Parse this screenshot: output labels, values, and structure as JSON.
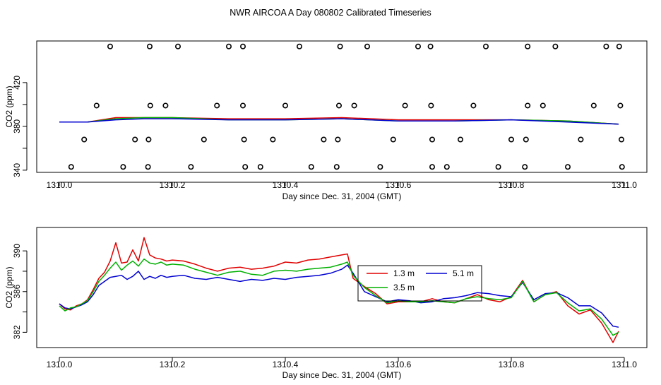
{
  "title": "NWR AIRCOA A  Day 080802  Calibrated Timeseries",
  "chart_data": [
    {
      "type": "line",
      "name": "top-panel",
      "xlabel": "Day since Dec. 31, 2004 (GMT)",
      "ylabel": "CO2 (ppm)",
      "xlim": [
        1310.0,
        1311.0
      ],
      "ylim": [
        338,
        458
      ],
      "x_ticks": [
        1310.0,
        1310.2,
        1310.4,
        1310.6,
        1310.8,
        1311.0
      ],
      "x_tick_labels": [
        "1310.0",
        "1310.2",
        "1310.4",
        "1310.6",
        "1310.8",
        "1311.0"
      ],
      "y_ticks": [
        340,
        360,
        380,
        400,
        420
      ],
      "y_tick_labels": [
        "340",
        "",
        "380",
        "",
        "420"
      ],
      "series": [
        {
          "name": "1.3 m",
          "color": "#e00000",
          "x": [
            1310.0,
            1310.05,
            1310.1,
            1310.15,
            1310.2,
            1310.3,
            1310.4,
            1310.5,
            1310.6,
            1310.7,
            1310.8,
            1310.9,
            1310.99
          ],
          "y": [
            384,
            384,
            388,
            388,
            388,
            387,
            387,
            388,
            386,
            386,
            386,
            385,
            382
          ]
        },
        {
          "name": "3.5 m",
          "color": "#00b000",
          "x": [
            1310.0,
            1310.05,
            1310.1,
            1310.15,
            1310.2,
            1310.3,
            1310.4,
            1310.5,
            1310.6,
            1310.7,
            1310.8,
            1310.9,
            1310.99
          ],
          "y": [
            384,
            384,
            387,
            388,
            388,
            386,
            386,
            387,
            385,
            385,
            386,
            385,
            382
          ]
        },
        {
          "name": "5.1 m",
          "color": "#0000d0",
          "x": [
            1310.0,
            1310.05,
            1310.1,
            1310.15,
            1310.2,
            1310.3,
            1310.4,
            1310.5,
            1310.6,
            1310.7,
            1310.8,
            1310.9,
            1310.99
          ],
          "y": [
            384,
            384,
            386,
            387,
            387,
            386,
            386,
            387,
            385,
            385,
            386,
            384,
            382
          ]
        }
      ],
      "scatter_points": {
        "x": [
          1310.09,
          1310.16,
          1310.21,
          1310.3,
          1310.325,
          1310.425,
          1310.497,
          1310.545,
          1310.635,
          1310.657,
          1310.755,
          1310.829,
          1310.878,
          1310.968,
          1310.991,
          1310.066,
          1310.161,
          1310.188,
          1310.279,
          1310.325,
          1310.4,
          1310.495,
          1310.522,
          1310.612,
          1310.658,
          1310.733,
          1310.829,
          1310.856,
          1310.946,
          1310.993,
          1310.044,
          1310.134,
          1310.158,
          1310.256,
          1310.327,
          1310.378,
          1310.468,
          1310.493,
          1310.591,
          1310.66,
          1310.71,
          1310.8,
          1310.826,
          1310.923,
          1310.995,
          1310.021,
          1310.113,
          1310.157,
          1310.233,
          1310.329,
          1310.356,
          1310.446,
          1310.491,
          1310.568,
          1310.66,
          1310.686,
          1310.777,
          1310.824,
          1310.9,
          1310.996
        ],
        "y": [
          453,
          453,
          453,
          453,
          453,
          453,
          453,
          453,
          453,
          453,
          453,
          453,
          453,
          453,
          453,
          399,
          399,
          399,
          399,
          399,
          399,
          399,
          399,
          399,
          399,
          399,
          399,
          399,
          399,
          399,
          368,
          368,
          368,
          368,
          368,
          368,
          368,
          368,
          368,
          368,
          368,
          368,
          368,
          368,
          368,
          343,
          343,
          343,
          343,
          343,
          343,
          343,
          343,
          343,
          343,
          343,
          343,
          343,
          343,
          343
        ]
      }
    },
    {
      "type": "line",
      "name": "bottom-panel",
      "xlabel": "Day since Dec. 31, 2004 (GMT)",
      "ylabel": "CO2 (ppm)",
      "xlim": [
        1310.0,
        1311.0
      ],
      "ylim": [
        380.5,
        392.3
      ],
      "x_ticks": [
        1310.0,
        1310.2,
        1310.4,
        1310.6,
        1310.8,
        1311.0
      ],
      "x_tick_labels": [
        "1310.0",
        "1310.2",
        "1310.4",
        "1310.6",
        "1310.8",
        "1311.0"
      ],
      "y_ticks": [
        382,
        384,
        386,
        388,
        390
      ],
      "y_tick_labels": [
        "382",
        "",
        "386",
        "",
        "390"
      ],
      "legend": {
        "position": "center-right",
        "entries": [
          "1.3 m",
          "5.1 m",
          "3.5 m"
        ]
      },
      "series": [
        {
          "name": "1.3 m",
          "color": "#e00000",
          "x": [
            1310.0,
            1310.01,
            1310.02,
            1310.03,
            1310.04,
            1310.05,
            1310.06,
            1310.07,
            1310.08,
            1310.09,
            1310.1,
            1310.11,
            1310.12,
            1310.13,
            1310.14,
            1310.15,
            1310.16,
            1310.17,
            1310.18,
            1310.19,
            1310.2,
            1310.22,
            1310.24,
            1310.26,
            1310.28,
            1310.3,
            1310.32,
            1310.34,
            1310.36,
            1310.38,
            1310.4,
            1310.42,
            1310.44,
            1310.46,
            1310.48,
            1310.5,
            1310.51,
            1310.52,
            1310.54,
            1310.56,
            1310.58,
            1310.6,
            1310.62,
            1310.64,
            1310.66,
            1310.68,
            1310.7,
            1310.72,
            1310.74,
            1310.76,
            1310.78,
            1310.8,
            1310.82,
            1310.84,
            1310.86,
            1310.88,
            1310.9,
            1310.92,
            1310.94,
            1310.96,
            1310.98,
            1310.99
          ],
          "y": [
            384.8,
            384.3,
            384.2,
            384.6,
            384.8,
            385.2,
            386.2,
            387.3,
            387.9,
            389.0,
            390.8,
            388.8,
            388.9,
            390.1,
            389.0,
            391.3,
            389.6,
            389.3,
            389.2,
            389.0,
            389.1,
            389.0,
            388.7,
            388.3,
            388.0,
            388.3,
            388.4,
            388.2,
            388.3,
            388.5,
            388.9,
            388.8,
            389.1,
            389.2,
            389.4,
            389.6,
            389.7,
            387.3,
            386.5,
            385.8,
            384.8,
            385.0,
            385.0,
            385.0,
            385.3,
            385.0,
            384.9,
            385.3,
            385.7,
            385.2,
            385.0,
            385.5,
            387.1,
            385.0,
            385.7,
            386.0,
            384.6,
            383.8,
            384.2,
            382.9,
            381.0,
            382.1
          ]
        },
        {
          "name": "5.1 m",
          "color": "#0000d0",
          "x": [
            1310.0,
            1310.01,
            1310.02,
            1310.03,
            1310.04,
            1310.05,
            1310.06,
            1310.07,
            1310.08,
            1310.09,
            1310.1,
            1310.11,
            1310.12,
            1310.13,
            1310.14,
            1310.15,
            1310.16,
            1310.17,
            1310.18,
            1310.19,
            1310.2,
            1310.22,
            1310.24,
            1310.26,
            1310.28,
            1310.3,
            1310.32,
            1310.34,
            1310.36,
            1310.38,
            1310.4,
            1310.42,
            1310.44,
            1310.46,
            1310.48,
            1310.5,
            1310.51,
            1310.52,
            1310.54,
            1310.56,
            1310.58,
            1310.6,
            1310.62,
            1310.64,
            1310.66,
            1310.68,
            1310.7,
            1310.72,
            1310.74,
            1310.76,
            1310.78,
            1310.8,
            1310.82,
            1310.84,
            1310.86,
            1310.88,
            1310.9,
            1310.92,
            1310.94,
            1310.96,
            1310.98,
            1310.99
          ],
          "y": [
            384.8,
            384.4,
            384.3,
            384.5,
            384.7,
            385.0,
            385.7,
            386.6,
            387.0,
            387.4,
            387.5,
            387.6,
            387.2,
            387.5,
            388.0,
            387.2,
            387.5,
            387.3,
            387.6,
            387.4,
            387.5,
            387.6,
            387.3,
            387.2,
            387.4,
            387.2,
            387.0,
            387.2,
            387.1,
            387.3,
            387.2,
            387.4,
            387.5,
            387.6,
            387.8,
            388.2,
            388.6,
            387.8,
            386.0,
            385.5,
            385.0,
            385.2,
            385.1,
            384.9,
            385.0,
            385.3,
            385.4,
            385.6,
            385.9,
            385.8,
            385.6,
            385.5,
            386.9,
            385.2,
            385.8,
            385.9,
            385.4,
            384.6,
            384.6,
            383.9,
            382.6,
            382.5
          ]
        },
        {
          "name": "3.5 m",
          "color": "#00b000",
          "x": [
            1310.0,
            1310.01,
            1310.02,
            1310.03,
            1310.04,
            1310.05,
            1310.06,
            1310.07,
            1310.08,
            1310.09,
            1310.1,
            1310.11,
            1310.12,
            1310.13,
            1310.14,
            1310.15,
            1310.16,
            1310.17,
            1310.18,
            1310.19,
            1310.2,
            1310.22,
            1310.24,
            1310.26,
            1310.28,
            1310.3,
            1310.32,
            1310.34,
            1310.36,
            1310.38,
            1310.4,
            1310.42,
            1310.44,
            1310.46,
            1310.48,
            1310.5,
            1310.51,
            1310.52,
            1310.54,
            1310.56,
            1310.58,
            1310.6,
            1310.62,
            1310.64,
            1310.66,
            1310.68,
            1310.7,
            1310.72,
            1310.74,
            1310.76,
            1310.78,
            1310.8,
            1310.82,
            1310.84,
            1310.86,
            1310.88,
            1310.9,
            1310.92,
            1310.94,
            1310.96,
            1310.98,
            1310.99
          ],
          "y": [
            384.6,
            384.1,
            384.4,
            384.5,
            384.8,
            385.1,
            386.0,
            387.0,
            387.6,
            388.3,
            388.9,
            388.1,
            388.6,
            389.0,
            388.5,
            389.2,
            388.8,
            388.7,
            388.9,
            388.6,
            388.7,
            388.6,
            388.2,
            387.9,
            387.6,
            387.9,
            388.0,
            387.7,
            387.6,
            388.0,
            388.1,
            388.0,
            388.2,
            388.3,
            388.4,
            388.7,
            388.9,
            387.6,
            386.4,
            385.6,
            384.9,
            385.1,
            385.0,
            385.0,
            385.1,
            385.0,
            384.9,
            385.3,
            385.5,
            385.3,
            385.2,
            385.4,
            387.0,
            385.0,
            385.7,
            385.9,
            384.9,
            384.1,
            384.3,
            383.3,
            381.7,
            382.0
          ]
        }
      ]
    }
  ]
}
